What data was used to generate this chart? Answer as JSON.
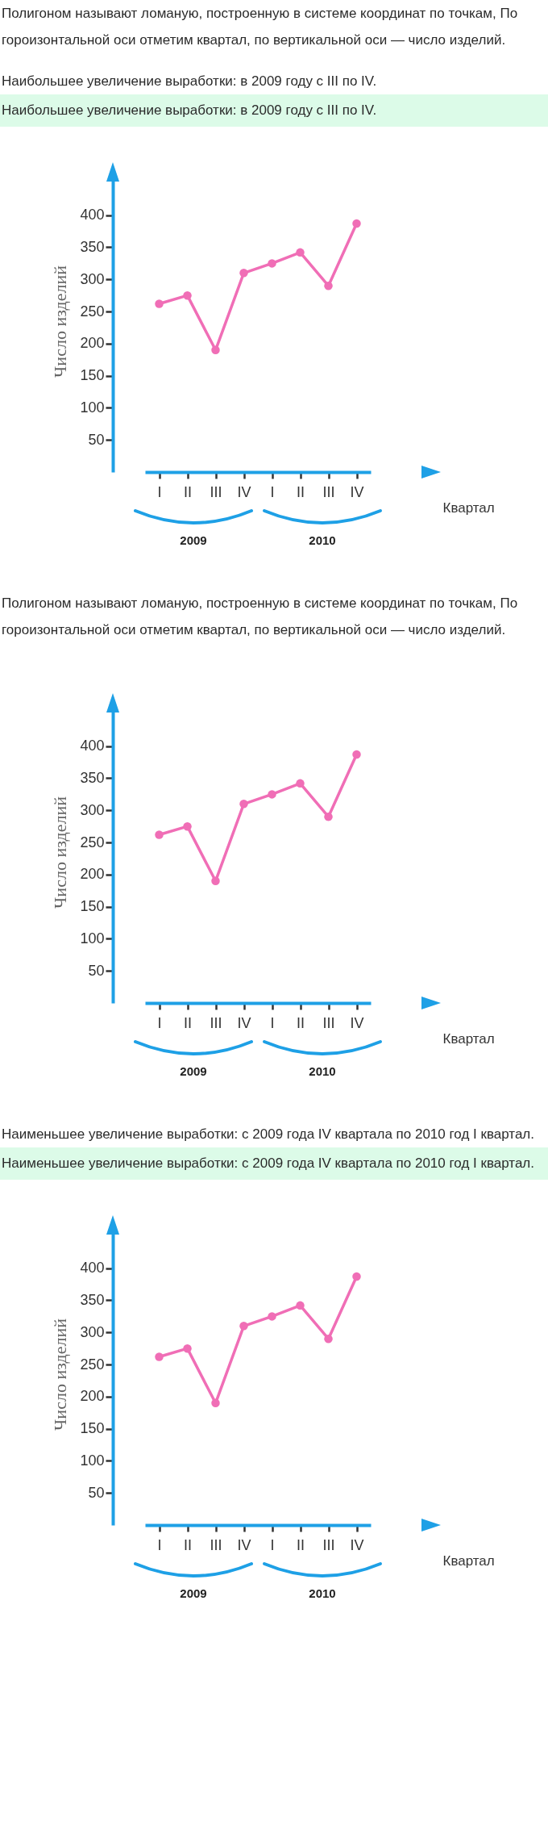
{
  "chart_data": [
    {
      "type": "line",
      "title": "Наибольшее увеличение выработки: в 2009 году с III по IV.",
      "subtitle": "Наибольшее увеличение выработки: в 2009 году с III по IV.",
      "annotations": [
        "Полигоном называют ломаную, построенную в системе координат по точкам, По гороизонтальной оси отметим квартал, по вертикальной оси — число изделий.",
        "2009",
        "2010"
      ],
      "xlabel": "Квартал",
      "ylabel": "Число изделий",
      "categories": [
        "I",
        "II",
        "III",
        "IV",
        "I",
        "II",
        "III",
        "IV"
      ],
      "series": [
        {
          "color": "#f06eb6",
          "values": [
            262,
            275,
            190,
            310,
            325,
            342,
            290,
            387
          ]
        }
      ],
      "ylim": [
        0,
        470
      ],
      "yticks": [
        50,
        100,
        150,
        200,
        250,
        300,
        350,
        400
      ],
      "grid": false,
      "marker": "circle",
      "line_style": "solid"
    },
    {
      "type": "line",
      "annotations": [
        "Полигоном называют ломаную, построенную в системе координат по точкам, По гороизонтальной оси отметим квартал, по вертикальной оси — число изделий.",
        "2009",
        "2010"
      ],
      "xlabel": "Квартал",
      "ylabel": "Число изделий",
      "categories": [
        "I",
        "II",
        "III",
        "IV",
        "I",
        "II",
        "III",
        "IV"
      ],
      "series": [
        {
          "color": "#f06eb6",
          "values": [
            262,
            275,
            190,
            310,
            325,
            342,
            290,
            387
          ]
        }
      ],
      "ylim": [
        0,
        470
      ],
      "yticks": [
        50,
        100,
        150,
        200,
        250,
        300,
        350,
        400
      ],
      "grid": false,
      "marker": "circle",
      "line_style": "solid"
    },
    {
      "type": "line",
      "title": "Наименьшее увеличение выработки: с 2009 года IV квартала по 2010 год I квартал.",
      "subtitle": "Наименьшее увеличение выработки: с 2009 года IV квартала по 2010 год I квартал.",
      "annotations": [
        "2009",
        "2010"
      ],
      "xlabel": "Квартал",
      "ylabel": "Число изделий",
      "categories": [
        "I",
        "II",
        "III",
        "IV",
        "I",
        "II",
        "III",
        "IV"
      ],
      "series": [
        {
          "color": "#f06eb6",
          "values": [
            262,
            275,
            190,
            310,
            325,
            342,
            290,
            387
          ]
        }
      ],
      "ylim": [
        0,
        470
      ],
      "yticks": [
        50,
        100,
        150,
        200,
        250,
        300,
        350,
        400
      ],
      "grid": false,
      "marker": "circle",
      "line_style": "solid"
    }
  ]
}
